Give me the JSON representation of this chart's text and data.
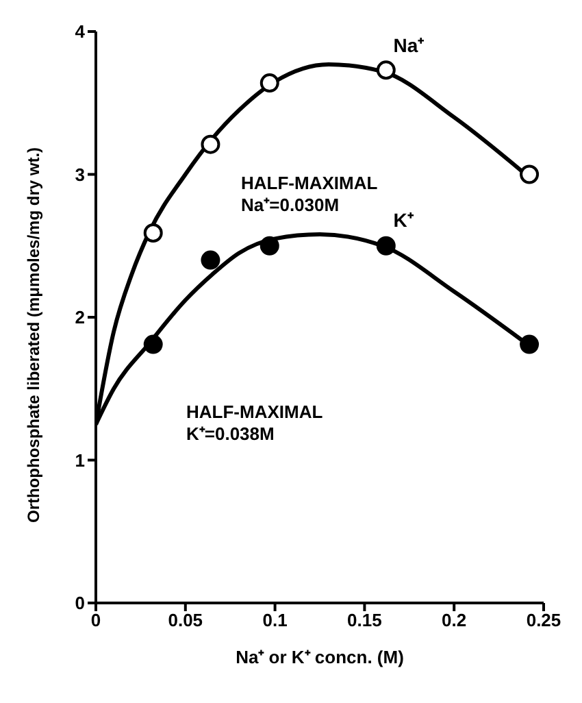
{
  "chart_data": {
    "type": "scatter",
    "xlabel": "Na⁺ or K⁺ concn. (M)",
    "ylabel": "Orthophosphate liberated (mμmoles/mg dry wt.)",
    "annotations": [
      "HALF-MAXIMAL\nNa⁺=0.030M",
      "HALF-MAXIMAL\nK⁺=0.038M"
    ],
    "series": [
      {
        "color": "#ffffff",
        "marker": "circle",
        "x": [
          0.032,
          0.064,
          0.097,
          0.162,
          0.242
        ],
        "values": [
          2.59,
          3.21,
          3.64,
          3.73,
          3.0
        ]
      },
      {
        "color": "#000000",
        "marker": "circle",
        "x": [
          0.032,
          0.064,
          0.097,
          0.162,
          0.242
        ],
        "values": [
          1.81,
          2.4,
          2.5,
          2.5,
          1.81
        ]
      },
      {
        "type": "line",
        "name": "Na⁺",
        "color": "#000000",
        "marker": "none",
        "x": [
          0,
          0.01,
          0.02,
          0.03,
          0.05,
          0.065,
          0.08,
          0.1,
          0.13,
          0.16,
          0.2,
          0.24
        ],
        "values": [
          1.25,
          1.9,
          2.3,
          2.6,
          3.0,
          3.25,
          3.45,
          3.65,
          3.77,
          3.72,
          3.4,
          3.0
        ]
      },
      {
        "type": "line",
        "name": "K⁺",
        "color": "#000000",
        "marker": "none",
        "x": [
          0,
          0.01,
          0.03,
          0.05,
          0.065,
          0.08,
          0.1,
          0.125,
          0.16,
          0.2,
          0.24
        ],
        "values": [
          1.25,
          1.5,
          1.82,
          2.12,
          2.3,
          2.45,
          2.55,
          2.58,
          2.5,
          2.18,
          1.82
        ]
      }
    ],
    "xlim": [
      0,
      0.25
    ],
    "xticks": [
      0,
      0.05,
      0.1,
      0.15,
      0.2,
      0.25
    ],
    "ylim": [
      0,
      4
    ],
    "yticks": [
      0,
      1,
      2,
      3,
      4
    ],
    "grid": false,
    "legend": false,
    "line_style": "solid"
  }
}
